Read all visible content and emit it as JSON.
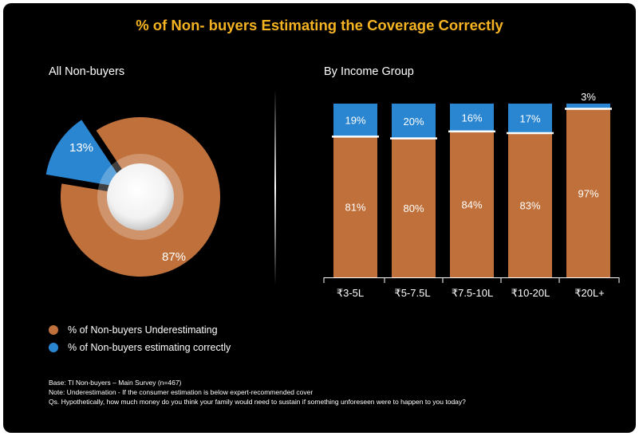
{
  "title": "% of Non- buyers Estimating the Coverage Correctly",
  "colors": {
    "underestimating": "#c0713b",
    "correct": "#2b86d1",
    "title": "#f5b321",
    "background": "#000000"
  },
  "legend": {
    "underestimating": "% of Non-buyers Underestimating",
    "correct": "% of Non-buyers estimating correctly"
  },
  "notes": {
    "base": "Base: TI Non-buyers – Main Survey (n=467)",
    "note": "Note: Underestimation - If the consumer estimation is below expert-recommended cover",
    "question": "Qs. Hypothetically, how much money do you think your family would need to sustain if something unforeseen were to happen to you today?"
  },
  "chart_data": [
    {
      "type": "pie",
      "title": "All Non-buyers",
      "slices": [
        {
          "label": "% of Non-buyers Underestimating",
          "value": 87,
          "display": "87%"
        },
        {
          "label": "% of Non-buyers estimating correctly",
          "value": 13,
          "display": "13%"
        }
      ]
    },
    {
      "type": "bar",
      "stacked": true,
      "title": "By Income Group",
      "categories": [
        "₹3-5L",
        "₹5-7.5L",
        "₹7.5-10L",
        "₹10-20L",
        "₹20L+"
      ],
      "series": [
        {
          "name": "% of Non-buyers Underestimating",
          "values": [
            81,
            80,
            84,
            83,
            97
          ],
          "labels": [
            "81%",
            "80%",
            "84%",
            "83%",
            "97%"
          ]
        },
        {
          "name": "% of Non-buyers estimating correctly",
          "values": [
            19,
            20,
            16,
            17,
            3
          ],
          "labels": [
            "19%",
            "20%",
            "16%",
            "17%",
            "3%"
          ]
        }
      ],
      "ylim": [
        0,
        100
      ]
    }
  ]
}
